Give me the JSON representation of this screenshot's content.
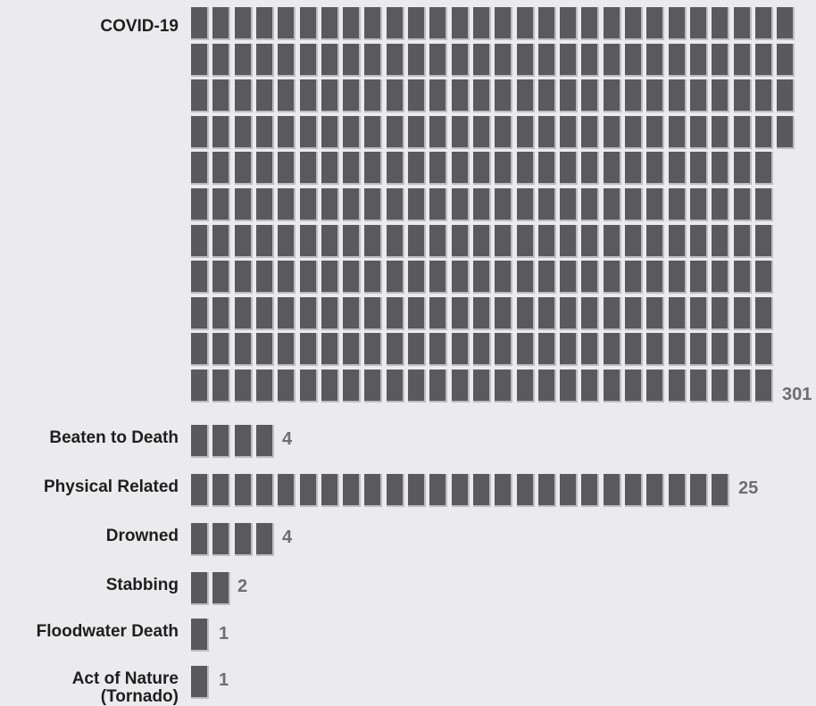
{
  "chart_data": {
    "type": "waffle",
    "unit": "count",
    "series": [
      {
        "name": "COVID-19",
        "label": "COVID-19",
        "value": 301,
        "value_label": "301"
      },
      {
        "name": "Beaten to Death",
        "label": "Beaten to Death",
        "value": 4,
        "value_label": "4"
      },
      {
        "name": "Physical Related",
        "label": "Physical Related",
        "value": 25,
        "value_label": "25"
      },
      {
        "name": "Drowned",
        "label": "Drowned",
        "value": 4,
        "value_label": "4"
      },
      {
        "name": "Stabbing",
        "label": "Stabbing",
        "value": 2,
        "value_label": "2"
      },
      {
        "name": "Floodwater Death",
        "label": "Floodwater Death",
        "value": 1,
        "value_label": "1"
      },
      {
        "name": "Act of Nature (Tornado)",
        "label": "Act of Nature\n(Tornado)",
        "value": 1,
        "value_label": "1"
      }
    ],
    "colors": {
      "cell": "#5a5a5c",
      "background": "#ebebed",
      "value_text": "#6e6e70",
      "label_text": "#1e1e1e"
    }
  }
}
